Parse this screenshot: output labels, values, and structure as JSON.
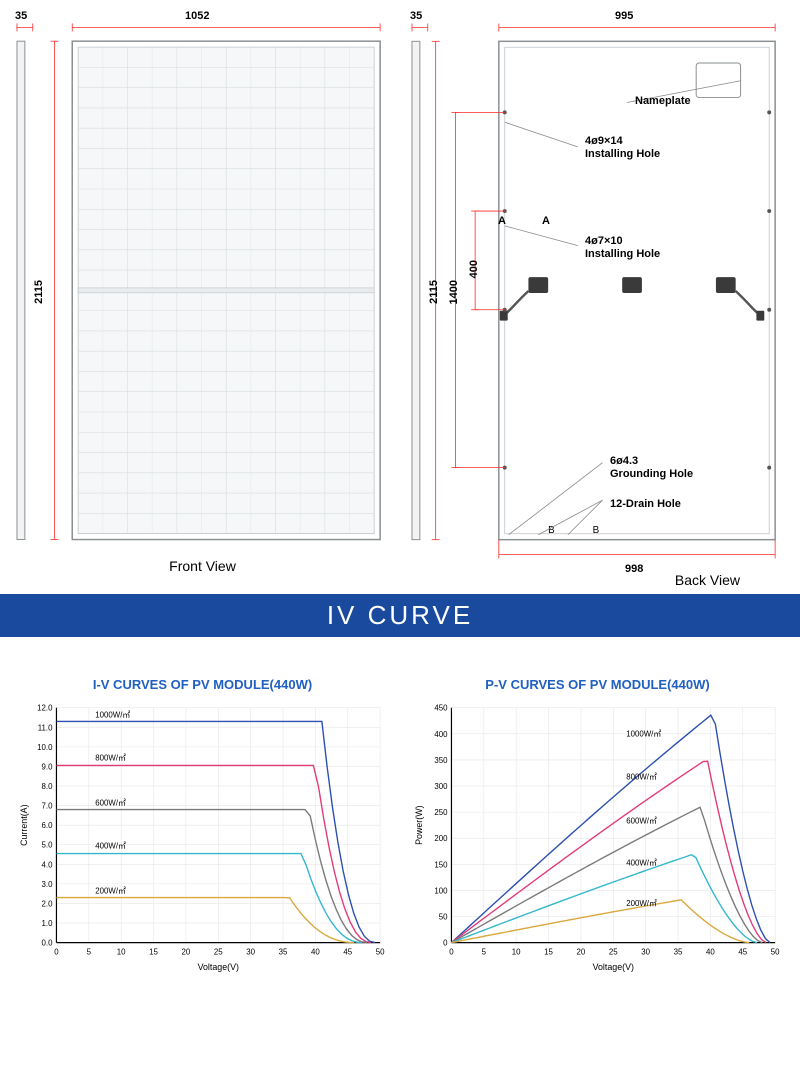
{
  "diagrams": {
    "front": {
      "view_label": "Front View",
      "dim_top_left": "35",
      "dim_top": "1052",
      "dim_left": "2115",
      "panel_cols": 6,
      "panel_rows": 24,
      "panel_bg": "#f5f7f8",
      "cell_stroke": "#d8dde0",
      "frame_stroke": "#8a8f92",
      "dim_color": "#ff2a2a",
      "side_profile_w": 8
    },
    "back": {
      "view_label": "Back View",
      "dim_top_left": "35",
      "dim_top": "995",
      "dim_left_outer": "2115",
      "dim_left_mid": "1400",
      "dim_left_inner": "400",
      "dim_bottom": "998",
      "section_A": "A",
      "section_B": "B",
      "callout_nameplate": "Nameplate",
      "callout_install1_line1": "4ø9×14",
      "callout_install1_line2": "Installing Hole",
      "callout_install2_line1": "4ø7×10",
      "callout_install2_line2": "Installing Hole",
      "callout_ground_line1": "6ø4.3",
      "callout_ground_line2": "Grounding Hole",
      "callout_drain": "12-Drain Hole",
      "panel_bg": "#ffffff",
      "frame_stroke": "#8a8f92",
      "dim_color": "#ff2a2a"
    }
  },
  "section_header": "IV CURVE",
  "charts": {
    "iv": {
      "title": "I-V CURVES OF PV MODULE(440W)",
      "xlabel": "Voltage(V)",
      "ylabel": "Current(A)",
      "xlim": [
        0,
        50
      ],
      "xtick_step": 5,
      "ylim": [
        0,
        12
      ],
      "ytick_step": 1,
      "grid_color": "#e6e6e6",
      "axis_color": "#000000",
      "series": [
        {
          "label": "1000W/㎡",
          "color": "#2a4fb0",
          "flat_y": 11.3,
          "knee_x": 41,
          "voc": 49.2,
          "label_x": 6,
          "label_y": 11.5
        },
        {
          "label": "800W/㎡",
          "color": "#e23a7a",
          "flat_y": 9.05,
          "knee_x": 40,
          "voc": 48.6,
          "label_x": 6,
          "label_y": 9.3
        },
        {
          "label": "600W/㎡",
          "color": "#7a7a7a",
          "flat_y": 6.8,
          "knee_x": 39,
          "voc": 48.0,
          "label_x": 6,
          "label_y": 7.0
        },
        {
          "label": "400W/㎡",
          "color": "#33b7cc",
          "flat_y": 4.55,
          "knee_x": 38,
          "voc": 47.2,
          "label_x": 6,
          "label_y": 4.8
        },
        {
          "label": "200W/㎡",
          "color": "#d9a73a",
          "flat_y": 2.3,
          "knee_x": 36,
          "voc": 46.0,
          "label_x": 6,
          "label_y": 2.5
        }
      ],
      "line_width": 1.4
    },
    "pv": {
      "title": "P-V CURVES OF PV MODULE(440W)",
      "xlabel": "Voltage(V)",
      "ylabel": "Power(W)",
      "xlim": [
        0,
        50
      ],
      "xtick_step": 5,
      "ylim": [
        0,
        450
      ],
      "ytick_step": 50,
      "grid_color": "#e6e6e6",
      "axis_color": "#000000",
      "series": [
        {
          "label": "1000W/㎡",
          "color": "#2a4fb0",
          "peak_x": 40.5,
          "peak_y": 440,
          "voc": 49.2,
          "label_x": 27,
          "label_y": 395
        },
        {
          "label": "800W/㎡",
          "color": "#e23a7a",
          "peak_x": 39.5,
          "peak_y": 352,
          "voc": 48.6,
          "label_x": 27,
          "label_y": 312
        },
        {
          "label": "600W/㎡",
          "color": "#7a7a7a",
          "peak_x": 38.5,
          "peak_y": 260,
          "voc": 48.0,
          "label_x": 27,
          "label_y": 228
        },
        {
          "label": "400W/㎡",
          "color": "#33b7cc",
          "peak_x": 37.5,
          "peak_y": 170,
          "voc": 47.2,
          "label_x": 27,
          "label_y": 148
        },
        {
          "label": "200W/㎡",
          "color": "#d9a73a",
          "peak_x": 35.5,
          "peak_y": 82,
          "voc": 46.0,
          "label_x": 27,
          "label_y": 70
        }
      ],
      "line_width": 1.4
    }
  }
}
